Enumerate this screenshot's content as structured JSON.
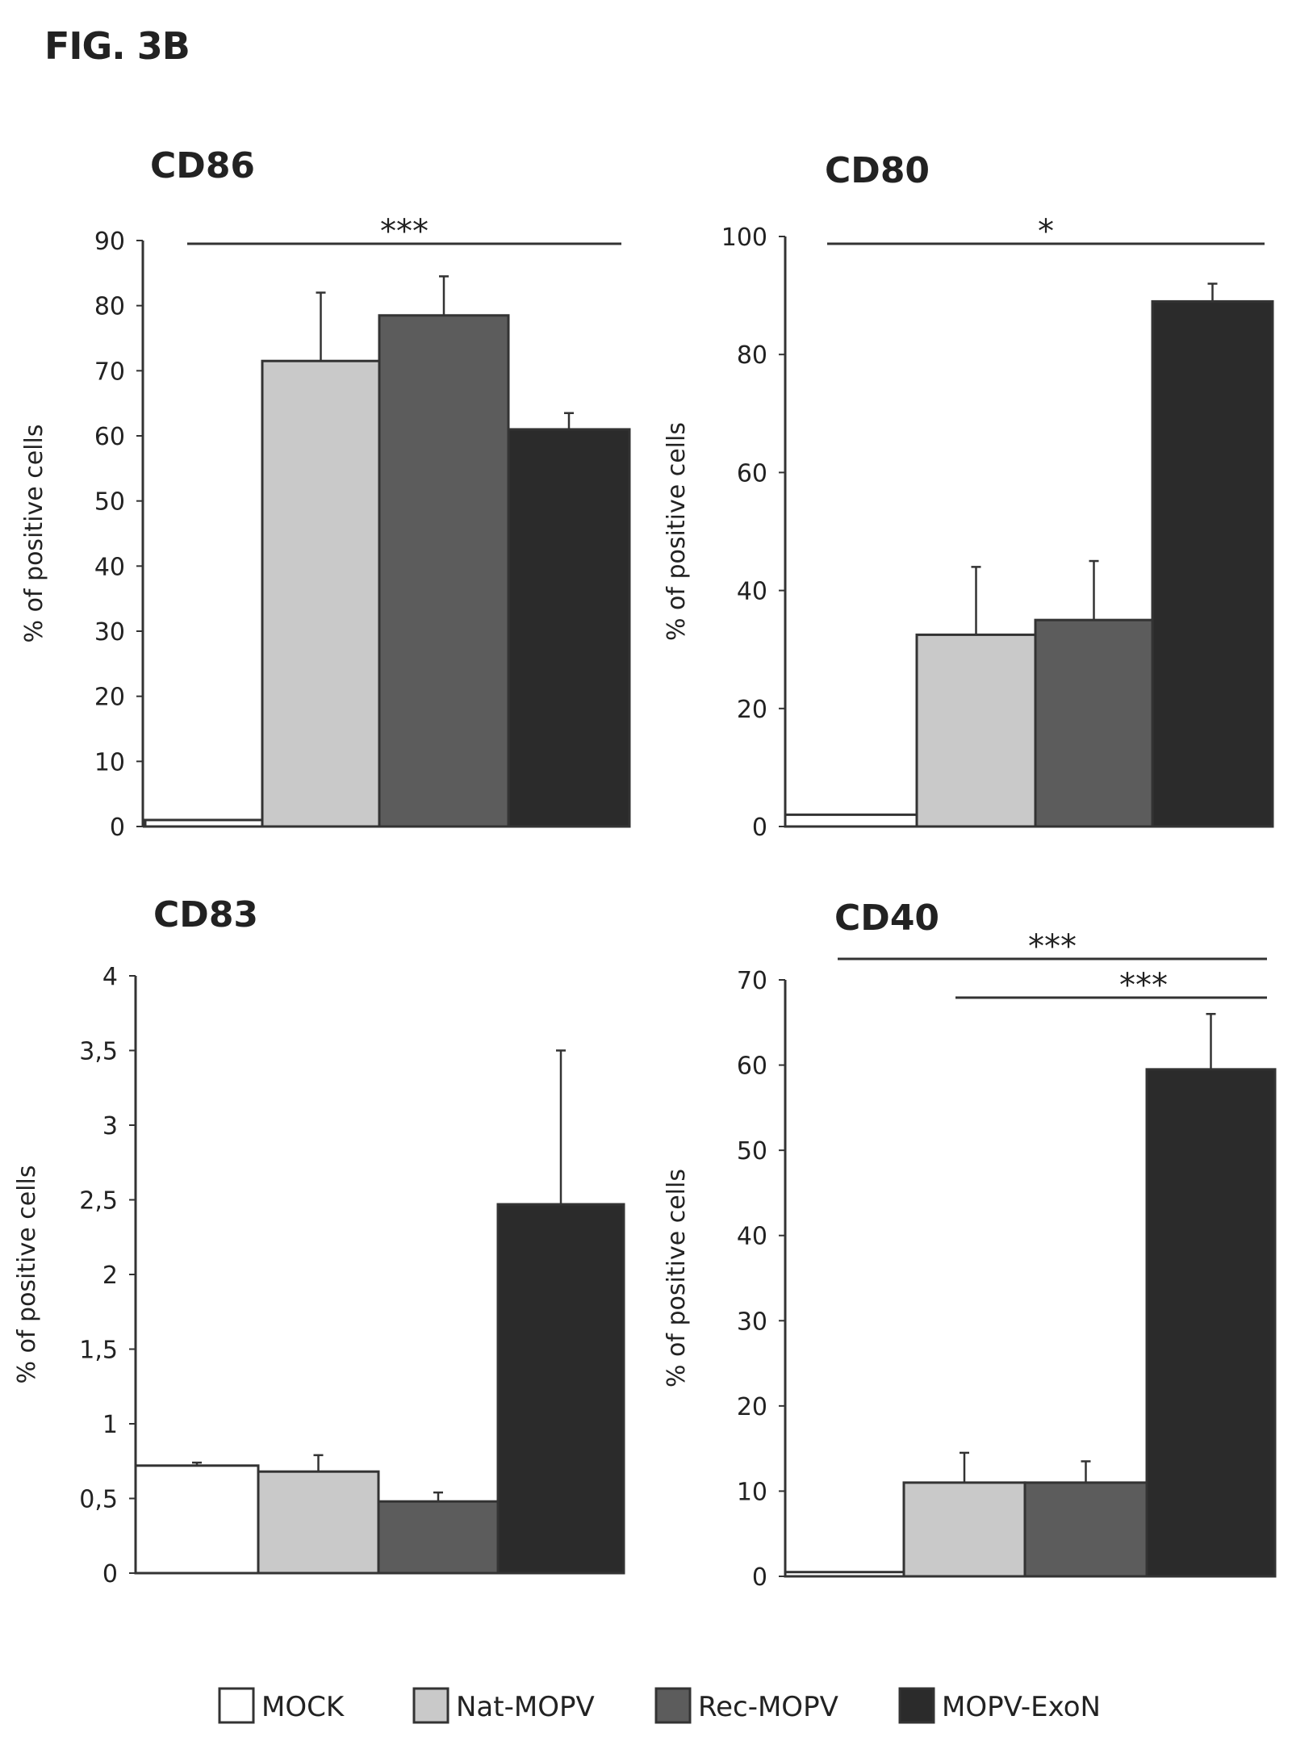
{
  "figure_title": "FIG. 3B",
  "legend": [
    {
      "label": "MOCK",
      "color": "#ffffff"
    },
    {
      "label": "Nat-MOPV",
      "color": "#c9c9c9"
    },
    {
      "label": "Rec-MOPV",
      "color": "#5c5c5c"
    },
    {
      "label": "MOPV-ExoN",
      "color": "#2b2b2b"
    }
  ],
  "chart_data": [
    {
      "type": "bar",
      "title": "CD86",
      "ylabel": "% of positive cells",
      "categories": [
        "MOCK",
        "Nat-MOPV",
        "Rec-MOPV",
        "MOPV-ExoN"
      ],
      "values": [
        1,
        71.5,
        78.5,
        61
      ],
      "error_upper": [
        1,
        82,
        84.5,
        63.5
      ],
      "ylim": [
        0,
        90
      ],
      "yticks": [
        0,
        10,
        20,
        30,
        40,
        50,
        60,
        70,
        80,
        90
      ],
      "ytick_labels": [
        "0",
        "10",
        "20",
        "30",
        "40",
        "50",
        "60",
        "70",
        "80",
        "90"
      ],
      "significance": [
        {
          "from": 0,
          "to": 3,
          "label": "***"
        }
      ]
    },
    {
      "type": "bar",
      "title": "CD80",
      "ylabel": "% of positive cells",
      "categories": [
        "MOCK",
        "Nat-MOPV",
        "Rec-MOPV",
        "MOPV-ExoN"
      ],
      "values": [
        2,
        32.5,
        35,
        89
      ],
      "error_upper": [
        2,
        44,
        45,
        92
      ],
      "ylim": [
        0,
        100
      ],
      "yticks": [
        0,
        20,
        40,
        60,
        80,
        100
      ],
      "ytick_labels": [
        "0",
        "20",
        "40",
        "60",
        "80",
        "100"
      ],
      "significance": [
        {
          "from": 0,
          "to": 3,
          "label": "*"
        }
      ]
    },
    {
      "type": "bar",
      "title": "CD83",
      "ylabel": "% of positive cells",
      "categories": [
        "MOCK",
        "Nat-MOPV",
        "Rec-MOPV",
        "MOPV-ExoN"
      ],
      "values": [
        0.72,
        0.68,
        0.48,
        2.47
      ],
      "error_upper": [
        0.74,
        0.79,
        0.54,
        3.5
      ],
      "ylim": [
        0,
        4
      ],
      "yticks": [
        0,
        0.5,
        1,
        1.5,
        2,
        2.5,
        3,
        3.5,
        4
      ],
      "ytick_labels": [
        "0",
        "0,5",
        "1",
        "1,5",
        "2",
        "2,5",
        "3",
        "3,5",
        "4"
      ],
      "significance": []
    },
    {
      "type": "bar",
      "title": "CD40",
      "ylabel": "% of positive cells",
      "categories": [
        "MOCK",
        "Nat-MOPV",
        "Rec-MOPV",
        "MOPV-ExoN"
      ],
      "values": [
        0.5,
        11,
        11,
        59.5
      ],
      "error_upper": [
        0.5,
        14.5,
        13.5,
        66
      ],
      "ylim": [
        0,
        70
      ],
      "yticks": [
        0,
        10,
        20,
        30,
        40,
        50,
        60,
        70
      ],
      "ytick_labels": [
        "0",
        "10",
        "20",
        "30",
        "40",
        "50",
        "60",
        "70"
      ],
      "significance": [
        {
          "from": 0,
          "to": 3,
          "label": "***"
        },
        {
          "from": 1,
          "to": 3,
          "label": "***"
        }
      ]
    }
  ]
}
